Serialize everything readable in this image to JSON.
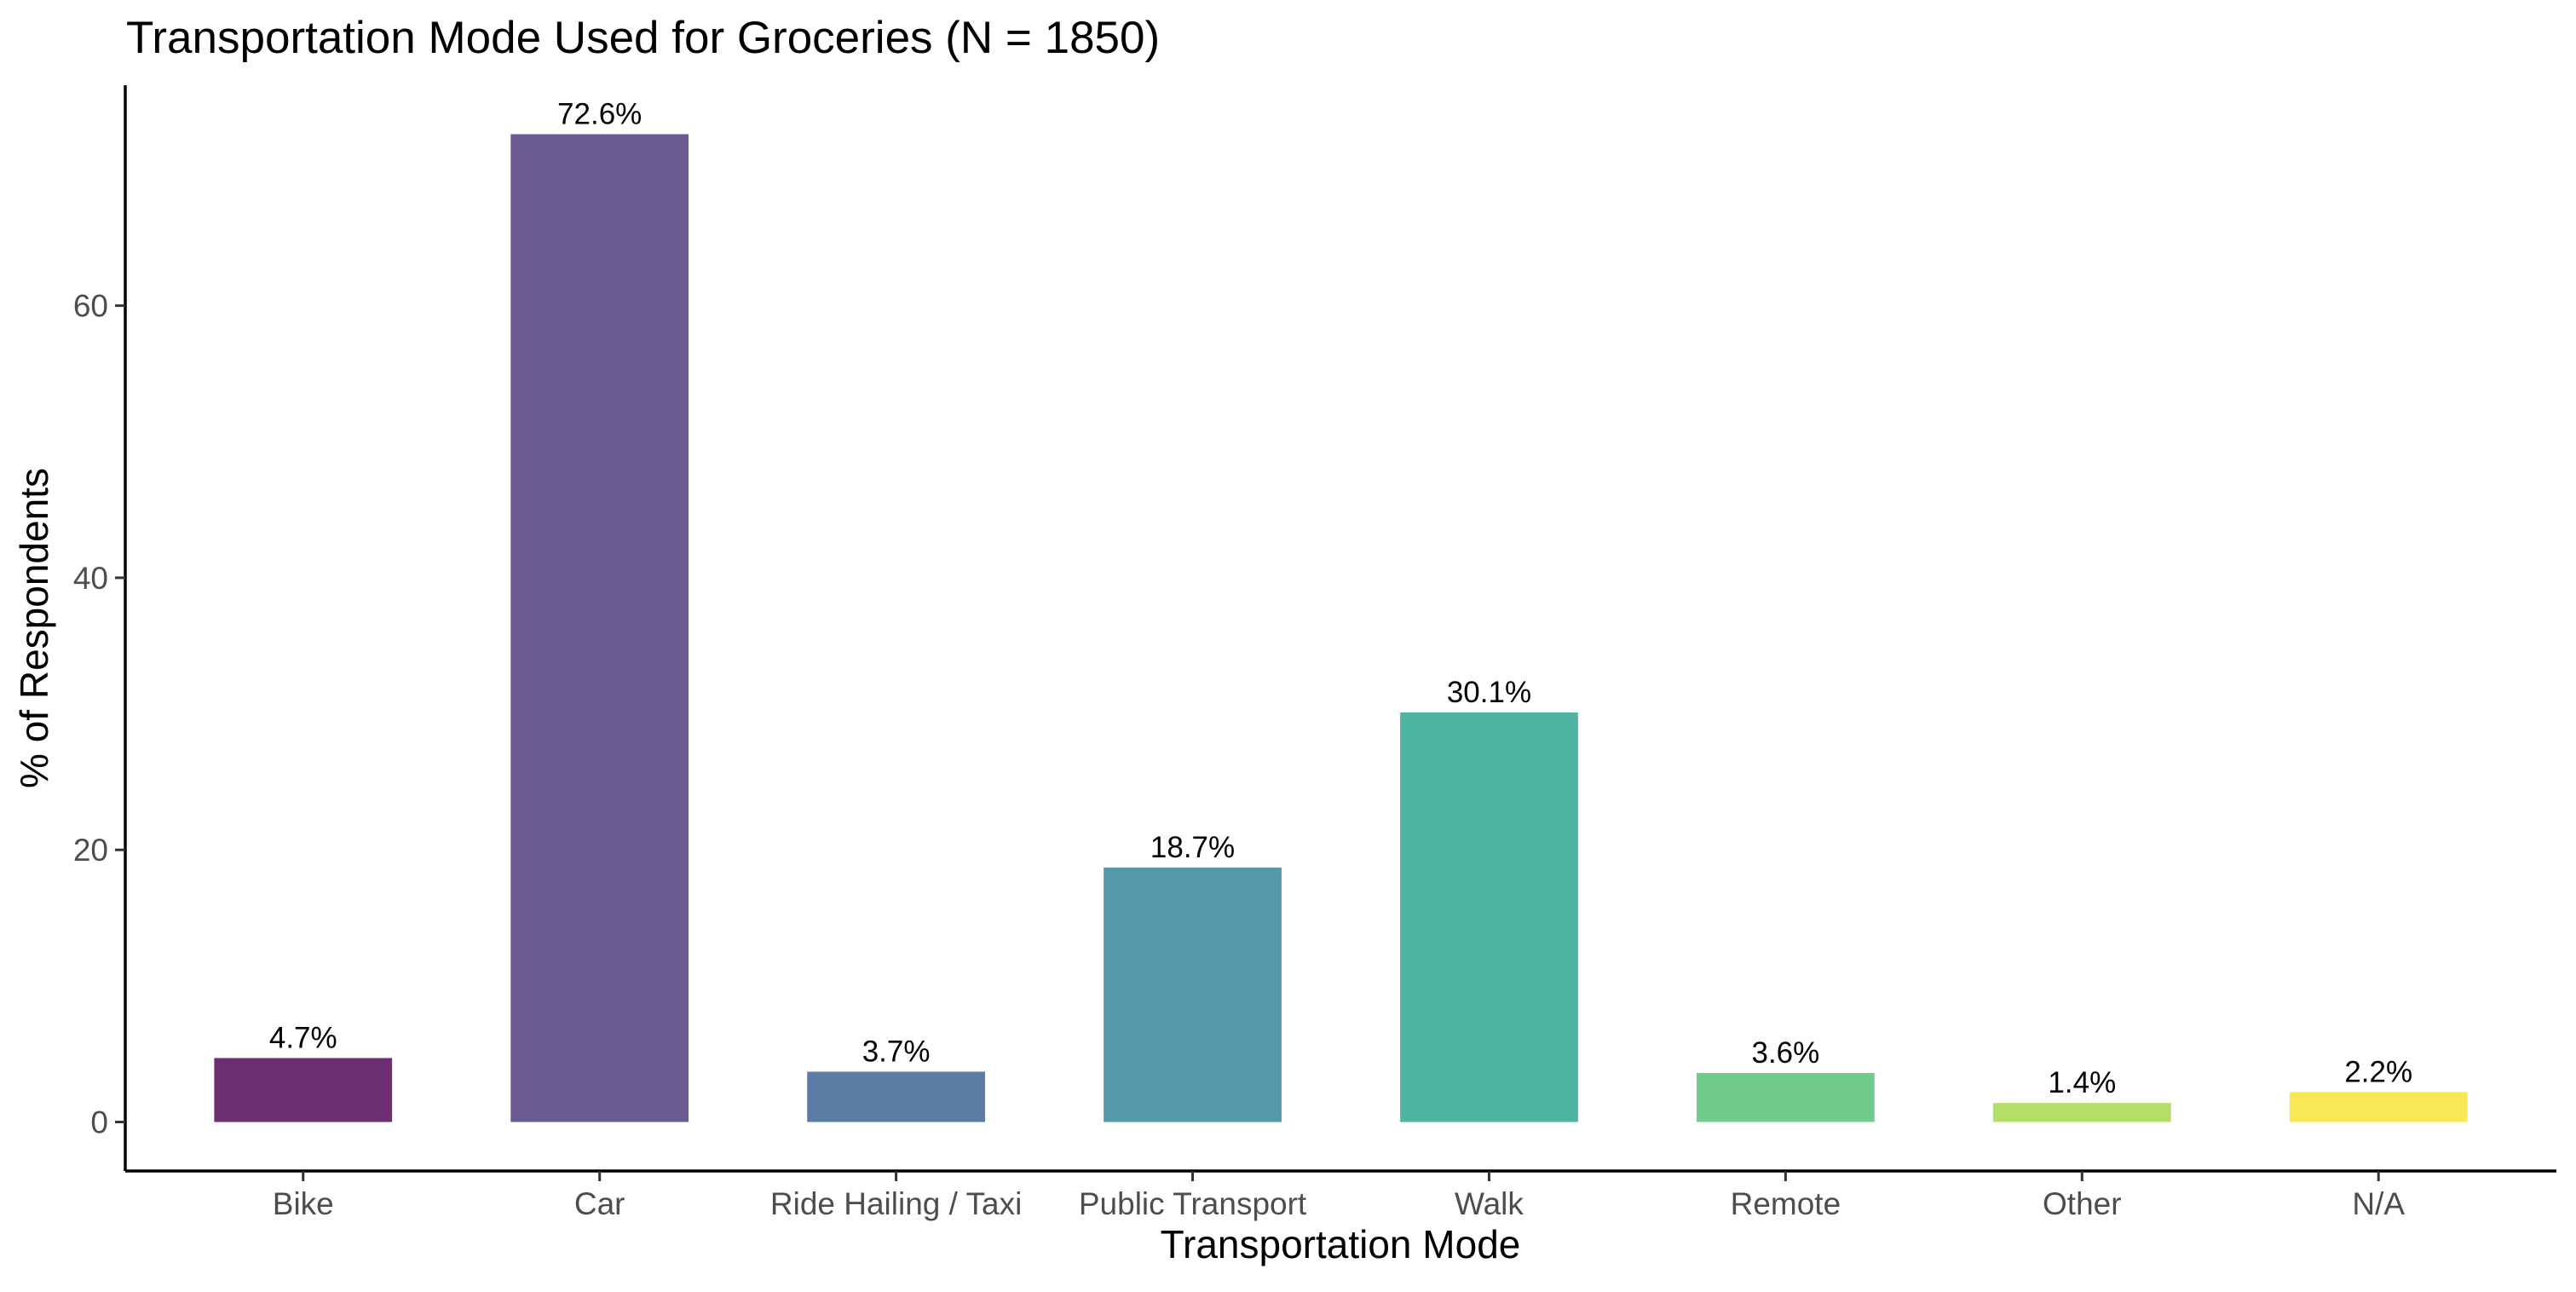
{
  "chart_data": {
    "type": "bar",
    "title": "Transportation Mode Used for Groceries (N = 1850)",
    "xlabel": "Transportation Mode",
    "ylabel": "% of Respondents",
    "categories": [
      "Bike",
      "Car",
      "Ride Hailing / Taxi",
      "Public Transport",
      "Walk",
      "Remote",
      "Other",
      "N/A"
    ],
    "values": [
      4.7,
      72.6,
      3.7,
      18.7,
      30.1,
      3.6,
      1.4,
      2.2
    ],
    "value_labels": [
      "4.7%",
      "72.6%",
      "3.7%",
      "18.7%",
      "30.1%",
      "3.6%",
      "1.4%",
      "2.2%"
    ],
    "colors": [
      "#6b2f72",
      "#6a5b94",
      "#5b7da3",
      "#5499a7",
      "#4fb4a1",
      "#6fcc8a",
      "#b4df67",
      "#f9e855"
    ],
    "yticks": [
      0,
      20,
      40,
      60
    ],
    "ytick_labels": [
      "0",
      "20",
      "40",
      "60"
    ],
    "ylim": [
      -3.6,
      76.2
    ],
    "grid": false,
    "legend": "none"
  }
}
